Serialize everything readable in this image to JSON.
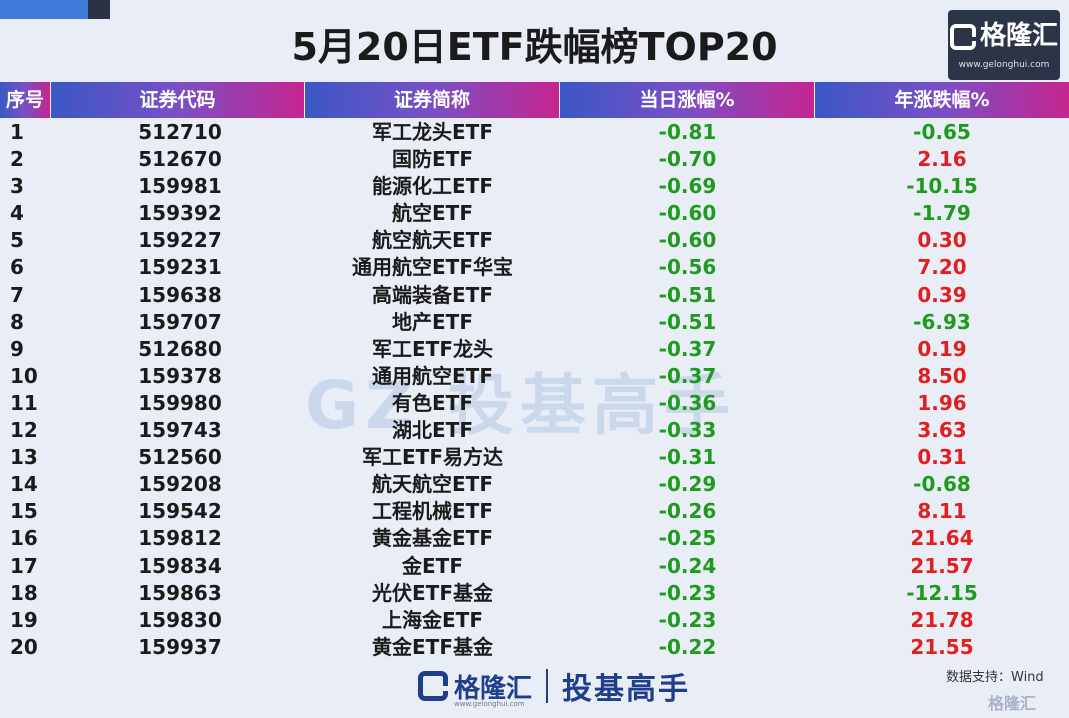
{
  "title": "5月20日ETF跌幅榜TOP20",
  "logo": {
    "brand": "格隆汇",
    "url": "www.gelonghui.com"
  },
  "headers": [
    "序号",
    "证券代码",
    "证券简称",
    "当日涨幅%",
    "年涨跌幅%"
  ],
  "rows": [
    {
      "idx": "1",
      "code": "512710",
      "name": "军工龙头ETF",
      "day": "-0.81",
      "year": "-0.65"
    },
    {
      "idx": "2",
      "code": "512670",
      "name": "国防ETF",
      "day": "-0.70",
      "year": "2.16"
    },
    {
      "idx": "3",
      "code": "159981",
      "name": "能源化工ETF",
      "day": "-0.69",
      "year": "-10.15"
    },
    {
      "idx": "4",
      "code": "159392",
      "name": "航空ETF",
      "day": "-0.60",
      "year": "-1.79"
    },
    {
      "idx": "5",
      "code": "159227",
      "name": "航空航天ETF",
      "day": "-0.60",
      "year": "0.30"
    },
    {
      "idx": "6",
      "code": "159231",
      "name": "通用航空ETF华宝",
      "day": "-0.56",
      "year": "7.20"
    },
    {
      "idx": "7",
      "code": "159638",
      "name": "高端装备ETF",
      "day": "-0.51",
      "year": "0.39"
    },
    {
      "idx": "8",
      "code": "159707",
      "name": "地产ETF",
      "day": "-0.51",
      "year": "-6.93"
    },
    {
      "idx": "9",
      "code": "512680",
      "name": "军工ETF龙头",
      "day": "-0.37",
      "year": "0.19"
    },
    {
      "idx": "10",
      "code": "159378",
      "name": "通用航空ETF",
      "day": "-0.37",
      "year": "8.50"
    },
    {
      "idx": "11",
      "code": "159980",
      "name": "有色ETF",
      "day": "-0.36",
      "year": "1.96"
    },
    {
      "idx": "12",
      "code": "159743",
      "name": "湖北ETF",
      "day": "-0.33",
      "year": "3.63"
    },
    {
      "idx": "13",
      "code": "512560",
      "name": "军工ETF易方达",
      "day": "-0.31",
      "year": "0.31"
    },
    {
      "idx": "14",
      "code": "159208",
      "name": "航天航空ETF",
      "day": "-0.29",
      "year": "-0.68"
    },
    {
      "idx": "15",
      "code": "159542",
      "name": "工程机械ETF",
      "day": "-0.26",
      "year": "8.11"
    },
    {
      "idx": "16",
      "code": "159812",
      "name": "黄金基金ETF",
      "day": "-0.25",
      "year": "21.64"
    },
    {
      "idx": "17",
      "code": "159834",
      "name": "金ETF",
      "day": "-0.24",
      "year": "21.57"
    },
    {
      "idx": "18",
      "code": "159863",
      "name": "光伏ETF基金",
      "day": "-0.23",
      "year": "-12.15"
    },
    {
      "idx": "19",
      "code": "159830",
      "name": "上海金ETF",
      "day": "-0.23",
      "year": "21.78"
    },
    {
      "idx": "20",
      "code": "159937",
      "name": "黄金ETF基金",
      "day": "-0.22",
      "year": "21.55"
    }
  ],
  "watermark": "GZ  投基高手",
  "footer": {
    "brand": "格隆汇",
    "url": "www.gelonghui.com",
    "slogan": "投基高手"
  },
  "source": "数据支持：Wind",
  "corner_brand": "格隆汇",
  "colors": {
    "negative": "#1e9a1e",
    "positive": "#e02020",
    "header_start": "#3a58c4",
    "header_end": "#c5258f"
  }
}
